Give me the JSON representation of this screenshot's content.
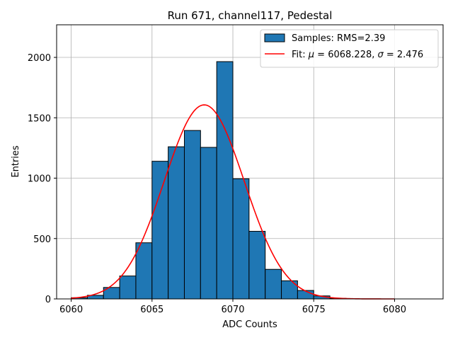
{
  "chart_data": {
    "type": "bar",
    "title": "Run 671, channel117, Pedestal",
    "xlabel": "ADC Counts",
    "ylabel": "Entries",
    "xlim": [
      6059.1,
      6083.0
    ],
    "ylim": [
      0,
      2270
    ],
    "xticks": [
      6060,
      6065,
      6070,
      6075,
      6080
    ],
    "yticks": [
      0,
      500,
      1000,
      1500,
      2000
    ],
    "grid": true,
    "legend_position": "top-right",
    "histogram": {
      "name": "Samples: RMS=2.39",
      "color": "#1f77b4",
      "edge_color": "#000000",
      "bins": [
        {
          "left": 6060,
          "right": 6061,
          "count": 10
        },
        {
          "left": 6061,
          "right": 6062,
          "count": 30
        },
        {
          "left": 6062,
          "right": 6063,
          "count": 95
        },
        {
          "left": 6063,
          "right": 6064,
          "count": 190
        },
        {
          "left": 6064,
          "right": 6065,
          "count": 465
        },
        {
          "left": 6065,
          "right": 6066,
          "count": 1140
        },
        {
          "left": 6066,
          "right": 6067,
          "count": 1260
        },
        {
          "left": 6067,
          "right": 6068,
          "count": 1395
        },
        {
          "left": 6068,
          "right": 6069,
          "count": 1255
        },
        {
          "left": 6069,
          "right": 6070,
          "count": 1965
        },
        {
          "left": 6070,
          "right": 6071,
          "count": 995
        },
        {
          "left": 6071,
          "right": 6072,
          "count": 560
        },
        {
          "left": 6072,
          "right": 6073,
          "count": 245
        },
        {
          "left": 6073,
          "right": 6074,
          "count": 150
        },
        {
          "left": 6074,
          "right": 6075,
          "count": 70
        },
        {
          "left": 6075,
          "right": 6076,
          "count": 25
        },
        {
          "left": 6076,
          "right": 6077,
          "count": 5
        }
      ]
    },
    "fit": {
      "name_prefix": "Fit: ",
      "name_mu": "μ",
      "name_mid": " = 6068.228, ",
      "name_sigma": "σ",
      "name_suffix": " = 2.476",
      "color": "#ff0000",
      "mu": 6068.228,
      "sigma": 2.476,
      "amplitude": 1607,
      "x_range": [
        6060,
        6080
      ]
    }
  }
}
